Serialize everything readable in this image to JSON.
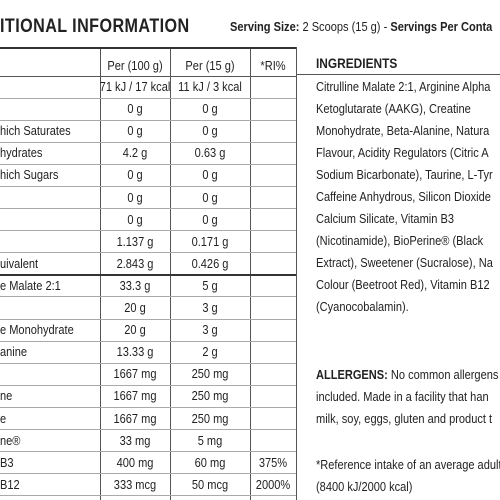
{
  "header": {
    "title": "ITIONAL INFORMATION",
    "serving": [
      "Serving Size:",
      "2 Scoops (15 g)",
      "-",
      "Servings Per Conta"
    ]
  },
  "table": {
    "columns": [
      "Per (100 g)",
      "Per (15 g)",
      "*RI%"
    ],
    "rows": [
      [
        null,
        "71 kJ / 17 kcal",
        "11 kJ / 3 kcal",
        null
      ],
      [
        null,
        "0 g",
        "0 g",
        null
      ],
      [
        "hich Saturates",
        "0 g",
        "0 g",
        null
      ],
      [
        "hydrates",
        "4.2 g",
        "0.63 g",
        null
      ],
      [
        "hich Sugars",
        "0 g",
        "0 g",
        null
      ],
      [
        null,
        "0 g",
        "0 g",
        null
      ],
      [
        null,
        "0 g",
        "0 g",
        null
      ],
      [
        null,
        "1.137 g",
        "0.171 g",
        null
      ],
      [
        "uivalent",
        "2.843 g",
        "0.426 g",
        null
      ],
      [
        "e Malate 2:1",
        "33.3 g",
        "5 g",
        null
      ],
      [
        null,
        "20 g",
        "3 g",
        null
      ],
      [
        "e Monohydrate",
        "20 g",
        "3 g",
        null
      ],
      [
        "anine",
        "13.33 g",
        "2 g",
        null
      ],
      [
        null,
        "1667 mg",
        "250 mg",
        null
      ],
      [
        "ne",
        "1667 mg",
        "250 mg",
        null
      ],
      [
        "e",
        "1667 mg",
        "250 mg",
        null
      ],
      [
        "ne®",
        "33 mg",
        "5 mg",
        null
      ],
      [
        "B3",
        "400 mg",
        "60 mg",
        "375%"
      ],
      [
        "B12",
        "333 mcg",
        "50 mcg",
        "2000%"
      ]
    ]
  },
  "ingredients": {
    "heading": "INGREDIENTS",
    "lines": [
      "Citrulline Malate 2:1, Arginine Alpha",
      "Ketoglutarate (AAKG), Creatine",
      "Monohydrate, Beta-Alanine, Natura",
      "Flavour, Acidity Regulators (Citric A",
      "Sodium Bicarbonate), Taurine, L-Tyr",
      "Caffeine Anhydrous, Silicon Dioxide",
      "Calcium Silicate, Vitamin B3",
      "(Nicotinamide), BioPerine® (Black",
      "Extract), Sweetener (Sucralose), Na",
      "Colour (Beetroot Red), Vitamin B12",
      "(Cyanocobalamin)."
    ]
  },
  "allergens": {
    "label": "ALLERGENS:",
    "lines": [
      "No common allergens",
      "included. Made in a facility that han",
      "milk, soy, eggs, gluten and product t"
    ]
  },
  "footnote": {
    "lines": [
      "*Reference intake of an average adult",
      "(8400 kJ/2000 kcal)"
    ]
  }
}
